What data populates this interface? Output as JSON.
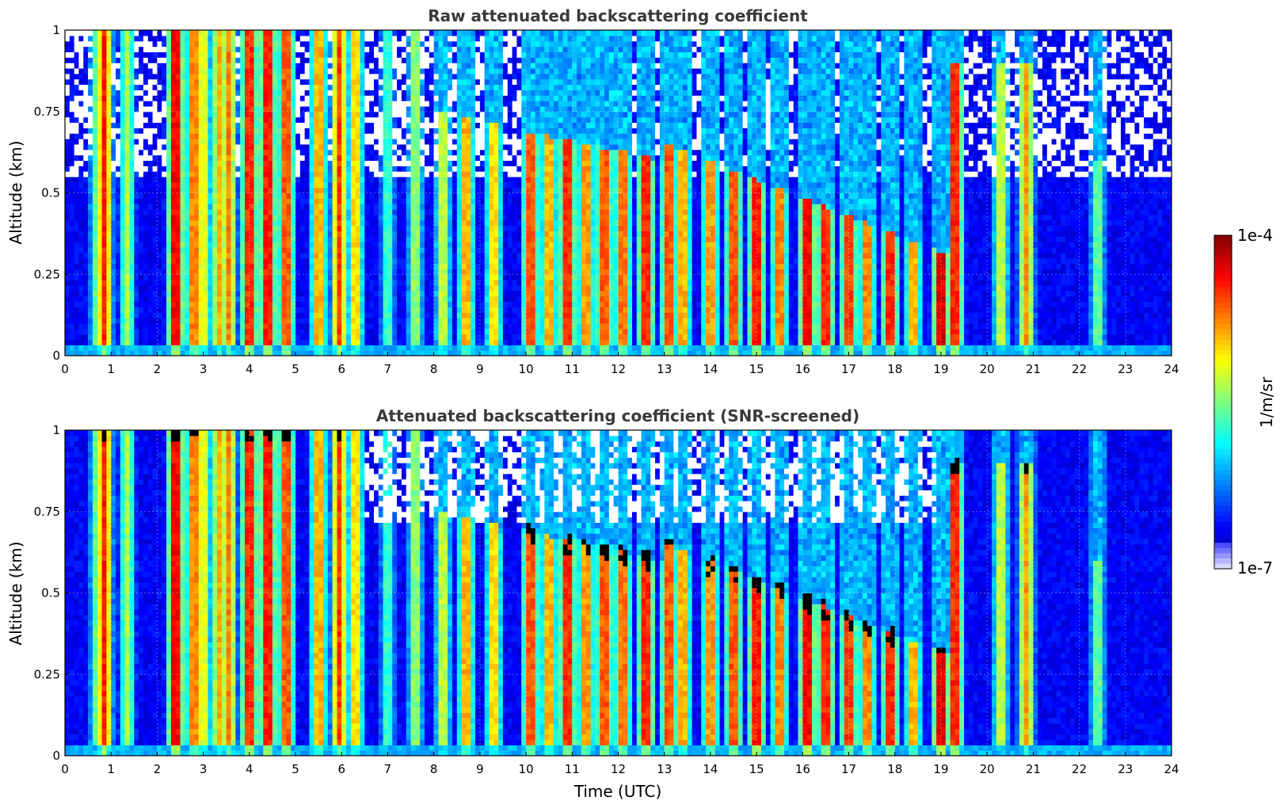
{
  "chart_data": [
    {
      "type": "heatmap",
      "title": "Raw attenuated backscattering coefficient",
      "xlabel": "",
      "ylabel": "Altitude (km)",
      "xlim": [
        0,
        24
      ],
      "ylim": [
        0,
        1
      ],
      "xticks": [
        "0",
        "1",
        "2",
        "3",
        "4",
        "5",
        "6",
        "7",
        "8",
        "9",
        "10",
        "11",
        "12",
        "13",
        "14",
        "15",
        "16",
        "17",
        "18",
        "19",
        "20",
        "21",
        "22",
        "23",
        "24"
      ],
      "yticks": [
        "0",
        "0.25",
        "0.5",
        "0.75",
        "1"
      ],
      "grid": true,
      "screened": false
    },
    {
      "type": "heatmap",
      "title": "Attenuated backscattering coefficient (SNR-screened)",
      "xlabel": "Time (UTC)",
      "ylabel": "Altitude (km)",
      "xlim": [
        0,
        24
      ],
      "ylim": [
        0,
        1
      ],
      "xticks": [
        "0",
        "1",
        "2",
        "3",
        "4",
        "5",
        "6",
        "7",
        "8",
        "9",
        "10",
        "11",
        "12",
        "13",
        "14",
        "15",
        "16",
        "17",
        "18",
        "19",
        "20",
        "21",
        "22",
        "23",
        "24"
      ],
      "yticks": [
        "0",
        "0.25",
        "0.5",
        "0.75",
        "1"
      ],
      "grid": true,
      "screened": true
    }
  ],
  "colorbar": {
    "label": "1/m/sr",
    "max_label": "1e-4",
    "min_label": "1e-7",
    "colormap": "jet",
    "scale": "log"
  }
}
